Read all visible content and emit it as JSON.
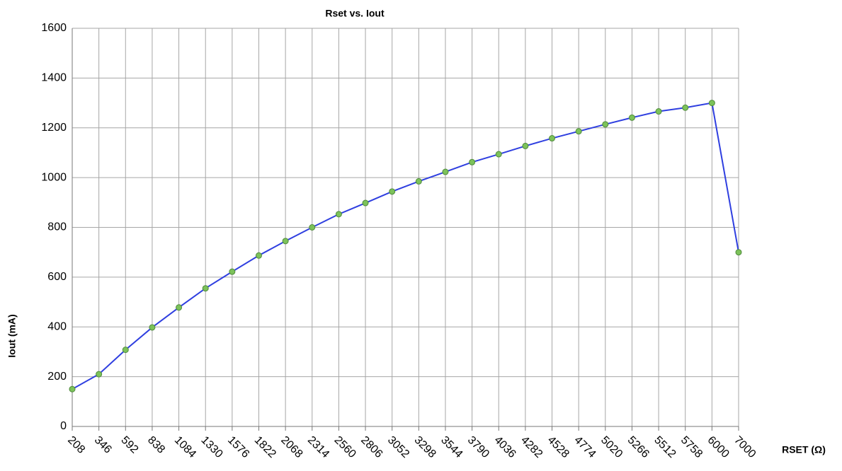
{
  "chart_data": {
    "type": "line",
    "title": "Rset vs. Iout",
    "x_label": "RSET (Ω)",
    "y_label": "Iout (mA)",
    "categories": [
      "208",
      "346",
      "592",
      "838",
      "1084",
      "1330",
      "1576",
      "1822",
      "2068",
      "2314",
      "2560",
      "2806",
      "3052",
      "3298",
      "3544",
      "3790",
      "4036",
      "4282",
      "4528",
      "4774",
      "5020",
      "5266",
      "5512",
      "5758",
      "6000",
      "7000"
    ],
    "series": [
      {
        "name": "Iout",
        "color": "#2f3fe0",
        "marker_color": "#7cc25a",
        "values": [
          150,
          210,
          308,
          398,
          478,
          555,
          622,
          687,
          745,
          800,
          853,
          898,
          944,
          985,
          1023,
          1062,
          1094,
          1127,
          1158,
          1186,
          1214,
          1241,
          1266,
          1281,
          1300,
          700
        ]
      }
    ],
    "ylim": [
      0,
      1600
    ],
    "yticks": [
      0,
      200,
      400,
      600,
      800,
      1000,
      1200,
      1400,
      1600
    ],
    "grid": true
  }
}
